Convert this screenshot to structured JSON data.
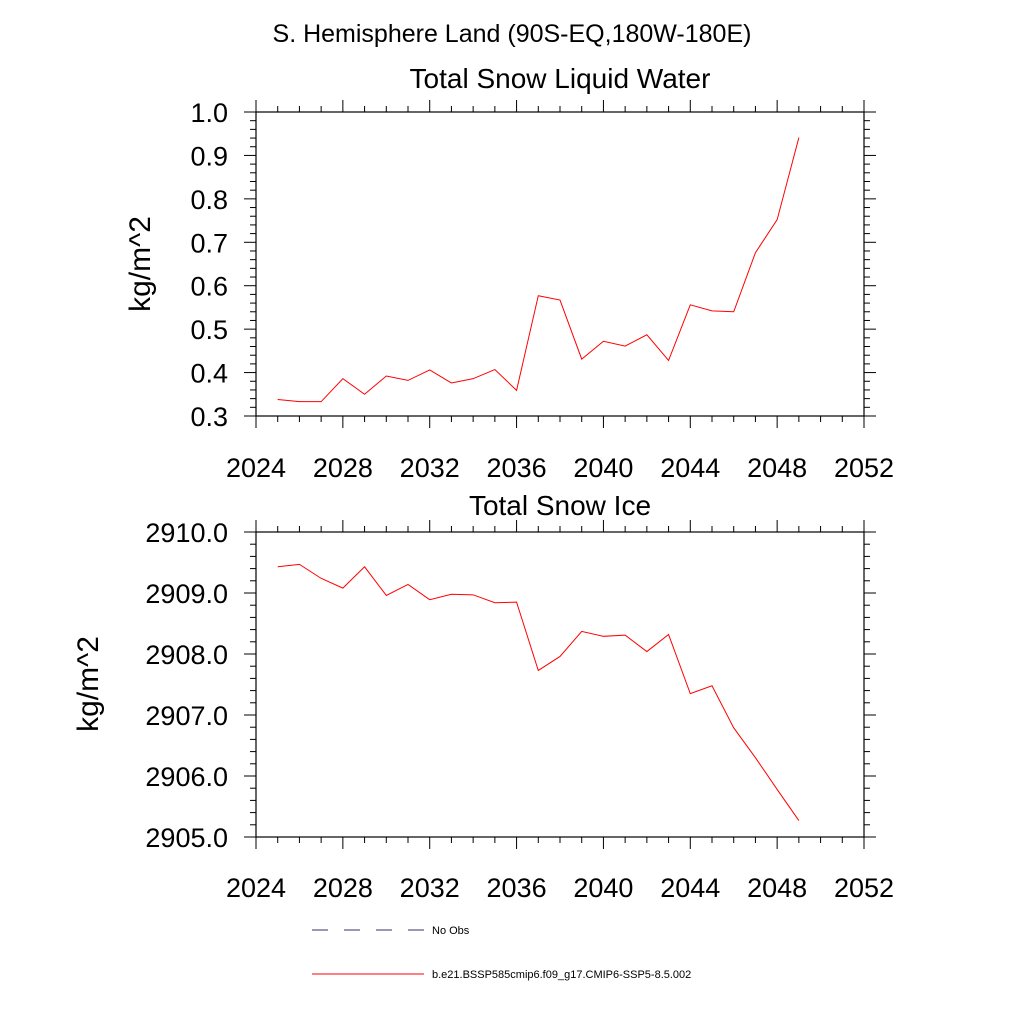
{
  "figure": {
    "title": "S. Hemisphere Land (90S-EQ,180W-180E)"
  },
  "chart_data": [
    {
      "type": "line",
      "title": "Total Snow Liquid Water",
      "xlabel": "",
      "ylabel": "kg/m^2",
      "xlim": [
        2024,
        2052
      ],
      "ylim": [
        0.3,
        1.0
      ],
      "x_ticks": [
        2024,
        2028,
        2032,
        2036,
        2040,
        2044,
        2048,
        2052
      ],
      "x_tick_labels": [
        "2024",
        "2028",
        "2032",
        "2036",
        "2040",
        "2044",
        "2048",
        "2052"
      ],
      "y_ticks": [
        0.3,
        0.4,
        0.5,
        0.6,
        0.7,
        0.8,
        0.9,
        1.0
      ],
      "y_tick_labels": [
        "0.3",
        "0.4",
        "0.5",
        "0.6",
        "0.7",
        "0.8",
        "0.9",
        "1.0"
      ],
      "y_minor_step": 0.02,
      "grid": false,
      "x": [
        2025,
        2026,
        2027,
        2028,
        2029,
        2030,
        2031,
        2032,
        2033,
        2034,
        2035,
        2036,
        2037,
        2038,
        2039,
        2040,
        2041,
        2042,
        2043,
        2044,
        2045,
        2046,
        2047,
        2048,
        2049
      ],
      "series": [
        {
          "name": "b.e21.BSSP585cmip6.f09_g17.CMIP6-SSP5-8.5.002",
          "color": "#ff0000",
          "values": [
            0.338,
            0.333,
            0.333,
            0.386,
            0.35,
            0.392,
            0.382,
            0.406,
            0.376,
            0.386,
            0.407,
            0.359,
            0.577,
            0.567,
            0.431,
            0.472,
            0.461,
            0.487,
            0.428,
            0.556,
            0.542,
            0.54,
            0.676,
            0.752,
            0.941
          ]
        }
      ]
    },
    {
      "type": "line",
      "title": "Total Snow Ice",
      "xlabel": "",
      "ylabel": "kg/m^2",
      "xlim": [
        2024,
        2052
      ],
      "ylim": [
        2905.0,
        2910.0
      ],
      "x_ticks": [
        2024,
        2028,
        2032,
        2036,
        2040,
        2044,
        2048,
        2052
      ],
      "x_tick_labels": [
        "2024",
        "2028",
        "2032",
        "2036",
        "2040",
        "2044",
        "2048",
        "2052"
      ],
      "y_ticks": [
        2905.0,
        2906.0,
        2907.0,
        2908.0,
        2909.0,
        2910.0
      ],
      "y_tick_labels": [
        "2905.0",
        "2906.0",
        "2907.0",
        "2908.0",
        "2909.0",
        "2910.0"
      ],
      "y_minor_step": 0.2,
      "grid": false,
      "x": [
        2025,
        2026,
        2027,
        2028,
        2029,
        2030,
        2031,
        2032,
        2033,
        2034,
        2035,
        2036,
        2037,
        2038,
        2039,
        2040,
        2041,
        2042,
        2043,
        2044,
        2045,
        2046,
        2047,
        2048,
        2049
      ],
      "series": [
        {
          "name": "b.e21.BSSP585cmip6.f09_g17.CMIP6-SSP5-8.5.002",
          "color": "#ff0000",
          "values": [
            2909.43,
            2909.47,
            2909.24,
            2909.08,
            2909.43,
            2908.96,
            2909.14,
            2908.89,
            2908.98,
            2908.97,
            2908.84,
            2908.85,
            2907.73,
            2907.96,
            2908.37,
            2908.29,
            2908.31,
            2908.04,
            2908.32,
            2907.35,
            2907.48,
            2906.79,
            2906.3,
            2905.78,
            2905.27
          ]
        }
      ]
    }
  ],
  "legend": {
    "entries": [
      {
        "label": "No Obs",
        "style": "dashed",
        "color": "#333366"
      },
      {
        "label": "b.e21.BSSP585cmip6.f09_g17.CMIP6-SSP5-8.5.002",
        "style": "solid",
        "color": "#ff0000"
      }
    ]
  }
}
